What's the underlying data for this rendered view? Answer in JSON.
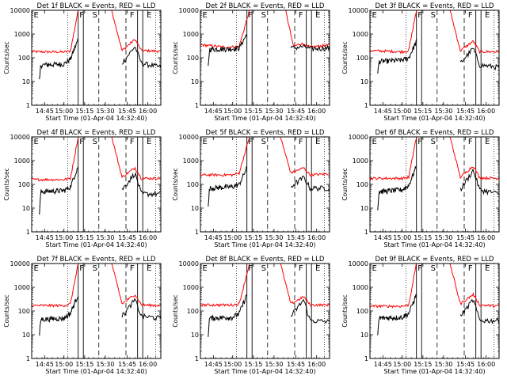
{
  "chart_data": [
    {
      "type": "line",
      "title": "Det 1f BLACK = Events, RED = LLD",
      "xlabel": "Start Time (01-Apr-04 14:32:40)",
      "ylabel": "Counts/sec",
      "x_tick_labels": [
        "14:45",
        "15:00",
        "15:15",
        "15:30",
        "15:45",
        "16:00"
      ],
      "y_tick_labels": [
        "1",
        "10",
        "100",
        "1000",
        "10000"
      ],
      "ylim": [
        1,
        10000
      ],
      "yscale": "log",
      "grid": false,
      "series_colors": {
        "events": "#000000",
        "lld": "#ff0000"
      },
      "region_labels": [
        "E",
        "F",
        "S",
        "F",
        "E"
      ],
      "lld_approx": [
        [
          0.0,
          180
        ],
        [
          0.25,
          175
        ],
        [
          0.3,
          190
        ],
        [
          0.36,
          10000
        ],
        [
          0.62,
          10000
        ],
        [
          0.7,
          200
        ],
        [
          0.8,
          600
        ],
        [
          0.85,
          200
        ],
        [
          1.0,
          190
        ]
      ],
      "events_approx": [
        [
          0.06,
          10
        ],
        [
          0.07,
          50
        ],
        [
          0.25,
          55
        ],
        [
          0.3,
          90
        ],
        [
          0.36,
          600
        ],
        [
          0.7,
          60
        ],
        [
          0.8,
          300
        ],
        [
          0.85,
          60
        ],
        [
          1.0,
          40
        ]
      ]
    },
    {
      "type": "line",
      "title": "Det 2f BLACK = Events, RED = LLD",
      "xlabel": "Start Time (01-Apr-04 14:32:40)",
      "ylabel": "Counts/sec",
      "x_tick_labels": [
        "14:45",
        "15:00",
        "15:15",
        "15:30",
        "15:45",
        "16:00"
      ],
      "y_tick_labels": [
        "1",
        "10",
        "100",
        "1000",
        "10000"
      ],
      "ylim": [
        1,
        10000
      ],
      "yscale": "log",
      "grid": false,
      "series_colors": {
        "events": "#000000",
        "lld": "#ff0000"
      },
      "region_labels": [
        "E",
        "F",
        "S",
        "F",
        "E"
      ],
      "lld_approx": [
        [
          0.0,
          350
        ],
        [
          0.2,
          280
        ],
        [
          0.3,
          300
        ],
        [
          0.38,
          10000
        ],
        [
          0.66,
          10000
        ],
        [
          0.72,
          300
        ],
        [
          0.78,
          400
        ],
        [
          0.85,
          280
        ],
        [
          1.0,
          350
        ]
      ],
      "events_approx": [
        [
          0.06,
          40
        ],
        [
          0.07,
          230
        ],
        [
          0.25,
          240
        ],
        [
          0.3,
          260
        ],
        [
          0.36,
          1000
        ],
        [
          0.7,
          250
        ],
        [
          0.8,
          300
        ],
        [
          0.85,
          240
        ],
        [
          1.0,
          260
        ]
      ]
    },
    {
      "type": "line",
      "title": "Det 3f BLACK = Events, RED = LLD",
      "xlabel": "Start Time (01-Apr-04 14:32:40)",
      "ylabel": "Counts/sec",
      "x_tick_labels": [
        "14:45",
        "15:00",
        "15:15",
        "15:30",
        "15:45",
        "16:00"
      ],
      "y_tick_labels": [
        "1",
        "10",
        "100",
        "1000",
        "10000"
      ],
      "ylim": [
        1,
        10000
      ],
      "yscale": "log",
      "grid": false,
      "series_colors": {
        "events": "#000000",
        "lld": "#ff0000"
      },
      "region_labels": [
        "E",
        "F",
        "S",
        "F",
        "E"
      ],
      "lld_approx": [
        [
          0.0,
          200
        ],
        [
          0.25,
          180
        ],
        [
          0.3,
          200
        ],
        [
          0.36,
          10000
        ],
        [
          0.62,
          10000
        ],
        [
          0.7,
          200
        ],
        [
          0.8,
          500
        ],
        [
          0.85,
          180
        ],
        [
          1.0,
          180
        ]
      ],
      "events_approx": [
        [
          0.06,
          20
        ],
        [
          0.07,
          70
        ],
        [
          0.25,
          80
        ],
        [
          0.3,
          100
        ],
        [
          0.36,
          500
        ],
        [
          0.7,
          60
        ],
        [
          0.8,
          250
        ],
        [
          0.85,
          50
        ],
        [
          1.0,
          40
        ]
      ]
    },
    {
      "type": "line",
      "title": "Det 4f BLACK = Events, RED = LLD",
      "xlabel": "Start Time (01-Apr-04 14:32:40)",
      "ylabel": "Counts/sec",
      "x_tick_labels": [
        "14:45",
        "15:00",
        "15:15",
        "15:30",
        "15:45",
        "16:00"
      ],
      "y_tick_labels": [
        "1",
        "10",
        "100",
        "1000",
        "10000"
      ],
      "ylim": [
        1,
        10000
      ],
      "yscale": "log",
      "grid": false,
      "series_colors": {
        "events": "#000000",
        "lld": "#ff0000"
      },
      "region_labels": [
        "E",
        "F",
        "S",
        "F",
        "E"
      ],
      "lld_approx": [
        [
          0.0,
          160
        ],
        [
          0.25,
          160
        ],
        [
          0.3,
          180
        ],
        [
          0.36,
          10000
        ],
        [
          0.62,
          10000
        ],
        [
          0.7,
          200
        ],
        [
          0.8,
          500
        ],
        [
          0.85,
          180
        ],
        [
          1.0,
          180
        ]
      ],
      "events_approx": [
        [
          0.06,
          5
        ],
        [
          0.07,
          50
        ],
        [
          0.25,
          55
        ],
        [
          0.3,
          80
        ],
        [
          0.36,
          600
        ],
        [
          0.7,
          60
        ],
        [
          0.8,
          300
        ],
        [
          0.85,
          40
        ],
        [
          1.0,
          40
        ]
      ]
    },
    {
      "type": "line",
      "title": "Det 5f BLACK = Events, RED = LLD",
      "xlabel": "Start Time (01-Apr-04 14:32:40)",
      "ylabel": "Counts/sec",
      "x_tick_labels": [
        "14:45",
        "15:00",
        "15:15",
        "15:30",
        "15:45",
        "16:00"
      ],
      "y_tick_labels": [
        "1",
        "10",
        "100",
        "1000",
        "10000"
      ],
      "ylim": [
        1,
        10000
      ],
      "yscale": "log",
      "grid": false,
      "series_colors": {
        "events": "#000000",
        "lld": "#ff0000"
      },
      "region_labels": [
        "E",
        "F",
        "S",
        "F",
        "E"
      ],
      "lld_approx": [
        [
          0.0,
          250
        ],
        [
          0.25,
          250
        ],
        [
          0.3,
          300
        ],
        [
          0.38,
          10000
        ],
        [
          0.62,
          10000
        ],
        [
          0.7,
          300
        ],
        [
          0.8,
          500
        ],
        [
          0.85,
          250
        ],
        [
          1.0,
          280
        ]
      ],
      "events_approx": [
        [
          0.06,
          10
        ],
        [
          0.07,
          70
        ],
        [
          0.25,
          80
        ],
        [
          0.3,
          100
        ],
        [
          0.36,
          500
        ],
        [
          0.7,
          80
        ],
        [
          0.8,
          200
        ],
        [
          0.85,
          70
        ],
        [
          1.0,
          70
        ]
      ]
    },
    {
      "type": "line",
      "title": "Det 6f BLACK = Events, RED = LLD",
      "xlabel": "Start Time (01-Apr-04 14:32:40)",
      "ylabel": "Counts/sec",
      "x_tick_labels": [
        "14:45",
        "15:00",
        "15:15",
        "15:30",
        "15:45",
        "16:00"
      ],
      "y_tick_labels": [
        "1",
        "10",
        "100",
        "1000",
        "10000"
      ],
      "ylim": [
        1,
        10000
      ],
      "yscale": "log",
      "grid": false,
      "series_colors": {
        "events": "#000000",
        "lld": "#ff0000"
      },
      "region_labels": [
        "E",
        "F",
        "S",
        "F",
        "E"
      ],
      "lld_approx": [
        [
          0.0,
          180
        ],
        [
          0.25,
          180
        ],
        [
          0.3,
          200
        ],
        [
          0.36,
          10000
        ],
        [
          0.62,
          10000
        ],
        [
          0.7,
          200
        ],
        [
          0.8,
          600
        ],
        [
          0.85,
          190
        ],
        [
          1.0,
          180
        ]
      ],
      "events_approx": [
        [
          0.06,
          10
        ],
        [
          0.07,
          50
        ],
        [
          0.25,
          60
        ],
        [
          0.3,
          90
        ],
        [
          0.36,
          600
        ],
        [
          0.7,
          60
        ],
        [
          0.8,
          400
        ],
        [
          0.85,
          60
        ],
        [
          1.0,
          40
        ]
      ]
    },
    {
      "type": "line",
      "title": "Det 7f BLACK = Events, RED = LLD",
      "xlabel": "Start Time (01-Apr-04 14:32:40)",
      "ylabel": "Counts/sec",
      "x_tick_labels": [
        "14:45",
        "15:00",
        "15:15",
        "15:30",
        "15:45",
        "16:00"
      ],
      "y_tick_labels": [
        "1",
        "10",
        "100",
        "1000",
        "10000"
      ],
      "ylim": [
        1,
        10000
      ],
      "yscale": "log",
      "grid": false,
      "series_colors": {
        "events": "#000000",
        "lld": "#ff0000"
      },
      "region_labels": [
        "E",
        "F",
        "S",
        "F",
        "E"
      ],
      "lld_approx": [
        [
          0.0,
          170
        ],
        [
          0.25,
          170
        ],
        [
          0.3,
          200
        ],
        [
          0.36,
          10000
        ],
        [
          0.62,
          10000
        ],
        [
          0.7,
          200
        ],
        [
          0.8,
          500
        ],
        [
          0.85,
          180
        ],
        [
          1.0,
          170
        ]
      ],
      "events_approx": [
        [
          0.06,
          10
        ],
        [
          0.07,
          45
        ],
        [
          0.25,
          50
        ],
        [
          0.3,
          80
        ],
        [
          0.36,
          500
        ],
        [
          0.7,
          60
        ],
        [
          0.8,
          300
        ],
        [
          0.85,
          60
        ],
        [
          1.0,
          50
        ]
      ]
    },
    {
      "type": "line",
      "title": "Det 8f BLACK = Events, RED = LLD",
      "xlabel": "Start Time (01-Apr-04 14:32:40)",
      "ylabel": "Counts/sec",
      "x_tick_labels": [
        "14:45",
        "15:00",
        "15:15",
        "15:30",
        "15:45",
        "16:00"
      ],
      "y_tick_labels": [
        "1",
        "10",
        "100",
        "1000",
        "10000"
      ],
      "ylim": [
        1,
        10000
      ],
      "yscale": "log",
      "grid": false,
      "series_colors": {
        "events": "#000000",
        "lld": "#ff0000"
      },
      "region_labels": [
        "E",
        "F",
        "S",
        "F",
        "E"
      ],
      "lld_approx": [
        [
          0.0,
          180
        ],
        [
          0.25,
          180
        ],
        [
          0.3,
          200
        ],
        [
          0.38,
          10000
        ],
        [
          0.62,
          10000
        ],
        [
          0.7,
          200
        ],
        [
          0.8,
          400
        ],
        [
          0.85,
          180
        ],
        [
          1.0,
          180
        ]
      ],
      "events_approx": [
        [
          0.06,
          10
        ],
        [
          0.07,
          50
        ],
        [
          0.25,
          55
        ],
        [
          0.3,
          80
        ],
        [
          0.36,
          500
        ],
        [
          0.7,
          60
        ],
        [
          0.8,
          300
        ],
        [
          0.85,
          40
        ],
        [
          1.0,
          35
        ]
      ]
    },
    {
      "type": "line",
      "title": "Det 9f BLACK = Events, RED = LLD",
      "xlabel": "Start Time (01-Apr-04 14:32:40)",
      "ylabel": "Counts/sec",
      "x_tick_labels": [
        "14:45",
        "15:00",
        "15:15",
        "15:30",
        "15:45",
        "16:00"
      ],
      "y_tick_labels": [
        "1",
        "10",
        "100",
        "1000",
        "10000"
      ],
      "ylim": [
        1,
        10000
      ],
      "yscale": "log",
      "grid": false,
      "series_colors": {
        "events": "#000000",
        "lld": "#ff0000"
      },
      "region_labels": [
        "E",
        "F",
        "S",
        "F",
        "E"
      ],
      "lld_approx": [
        [
          0.0,
          160
        ],
        [
          0.25,
          160
        ],
        [
          0.3,
          180
        ],
        [
          0.36,
          10000
        ],
        [
          0.62,
          10000
        ],
        [
          0.7,
          200
        ],
        [
          0.8,
          500
        ],
        [
          0.85,
          180
        ],
        [
          1.0,
          160
        ]
      ],
      "events_approx": [
        [
          0.06,
          10
        ],
        [
          0.07,
          50
        ],
        [
          0.25,
          55
        ],
        [
          0.3,
          80
        ],
        [
          0.36,
          500
        ],
        [
          0.7,
          60
        ],
        [
          0.8,
          300
        ],
        [
          0.85,
          40
        ],
        [
          1.0,
          40
        ]
      ]
    }
  ]
}
